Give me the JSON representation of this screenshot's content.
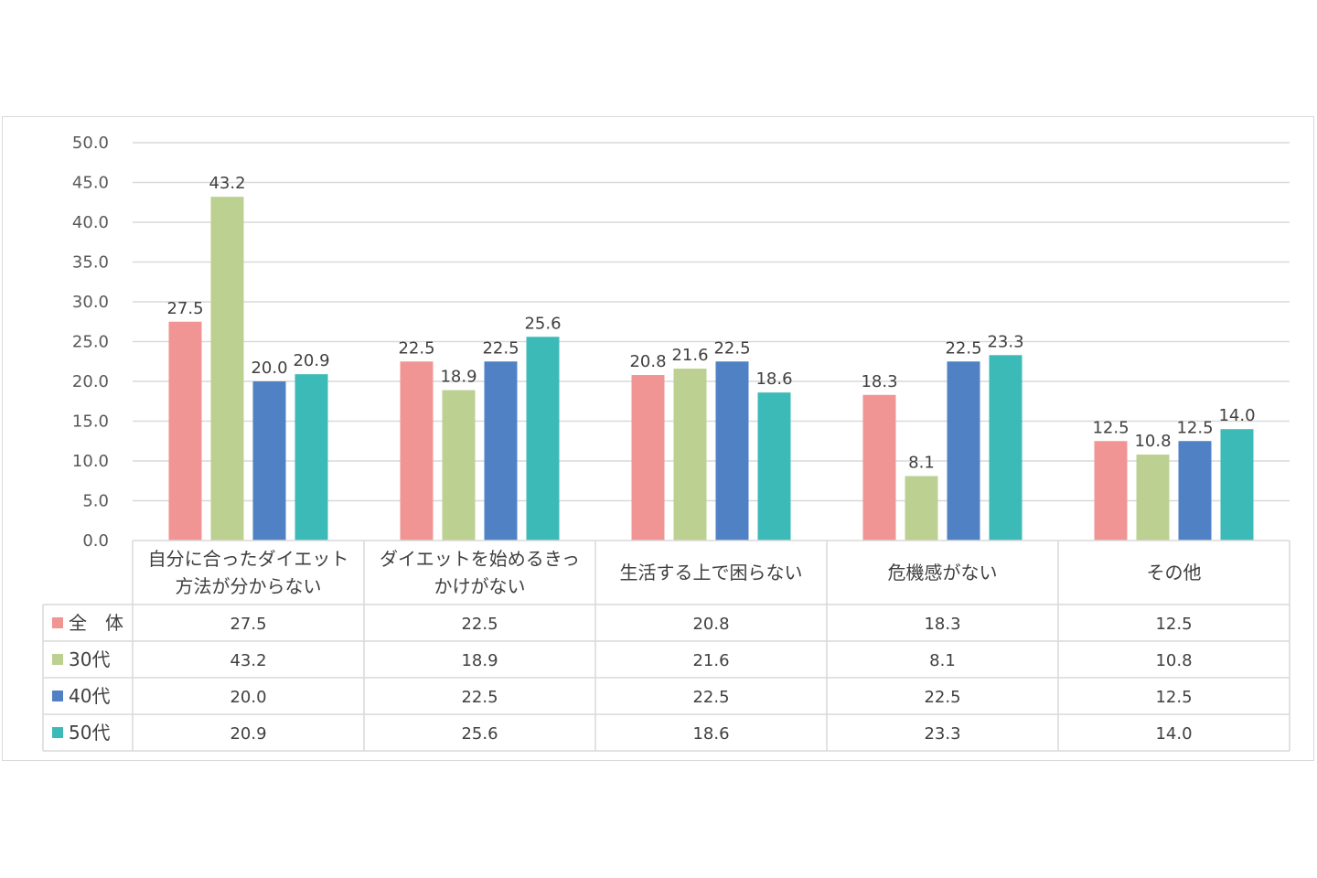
{
  "chart_data": {
    "type": "bar",
    "categories": [
      [
        "自分に合ったダイエット",
        "方法が分からない"
      ],
      [
        "ダイエットを始めるきっ",
        "かけがない"
      ],
      [
        "生活する上で困らない"
      ],
      [
        "危機感がない"
      ],
      [
        "その他"
      ]
    ],
    "series": [
      {
        "name": "全　体",
        "color": "#f09594",
        "values": [
          27.5,
          22.5,
          20.8,
          18.3,
          12.5
        ]
      },
      {
        "name": "30代",
        "color": "#bcd092",
        "values": [
          43.2,
          18.9,
          21.6,
          8.1,
          10.8
        ]
      },
      {
        "name": "40代",
        "color": "#4f81c4",
        "values": [
          20.0,
          22.5,
          22.5,
          22.5,
          12.5
        ]
      },
      {
        "name": "50代",
        "color": "#3cbab8",
        "values": [
          20.9,
          25.6,
          18.6,
          23.3,
          14.0
        ]
      }
    ],
    "ylim": [
      0,
      50
    ],
    "yticks": [
      "0.0",
      "5.0",
      "10.0",
      "15.0",
      "20.0",
      "25.0",
      "30.0",
      "35.0",
      "40.0",
      "45.0",
      "50.0"
    ],
    "title": "",
    "xlabel": "",
    "ylabel": "",
    "grid": true,
    "legend_placement": "data-table-left"
  }
}
